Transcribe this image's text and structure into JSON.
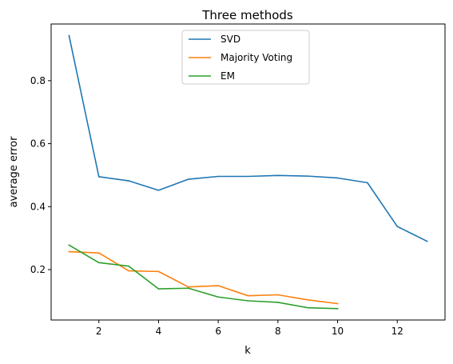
{
  "chart_data": {
    "type": "line",
    "title": "Three methods",
    "xlabel": "k",
    "ylabel": "average error",
    "xlim": [
      0.4,
      13.6
    ],
    "ylim": [
      0.04,
      0.98
    ],
    "xticks": [
      2,
      4,
      6,
      8,
      10,
      12
    ],
    "yticks": [
      0.2,
      0.4,
      0.6,
      0.8
    ],
    "grid": false,
    "legend_position": "top-center",
    "series": [
      {
        "name": "SVD",
        "color": "#1f77b4",
        "x": [
          1,
          2,
          3,
          4,
          5,
          6,
          7,
          8,
          9,
          10,
          11,
          12,
          13
        ],
        "y": [
          0.943,
          0.495,
          0.482,
          0.452,
          0.487,
          0.496,
          0.496,
          0.499,
          0.497,
          0.491,
          0.476,
          0.337,
          0.29
        ]
      },
      {
        "name": "Majority Voting",
        "color": "#ff7f0e",
        "x": [
          1,
          2,
          3,
          4,
          5,
          6,
          7,
          8,
          9,
          10
        ],
        "y": [
          0.257,
          0.253,
          0.196,
          0.194,
          0.145,
          0.149,
          0.117,
          0.12,
          0.104,
          0.092
        ]
      },
      {
        "name": "EM",
        "color": "#2ca02c",
        "x": [
          1,
          2,
          3,
          4,
          5,
          6,
          7,
          8,
          9,
          10
        ],
        "y": [
          0.278,
          0.222,
          0.211,
          0.139,
          0.141,
          0.113,
          0.101,
          0.096,
          0.079,
          0.076
        ]
      }
    ]
  }
}
